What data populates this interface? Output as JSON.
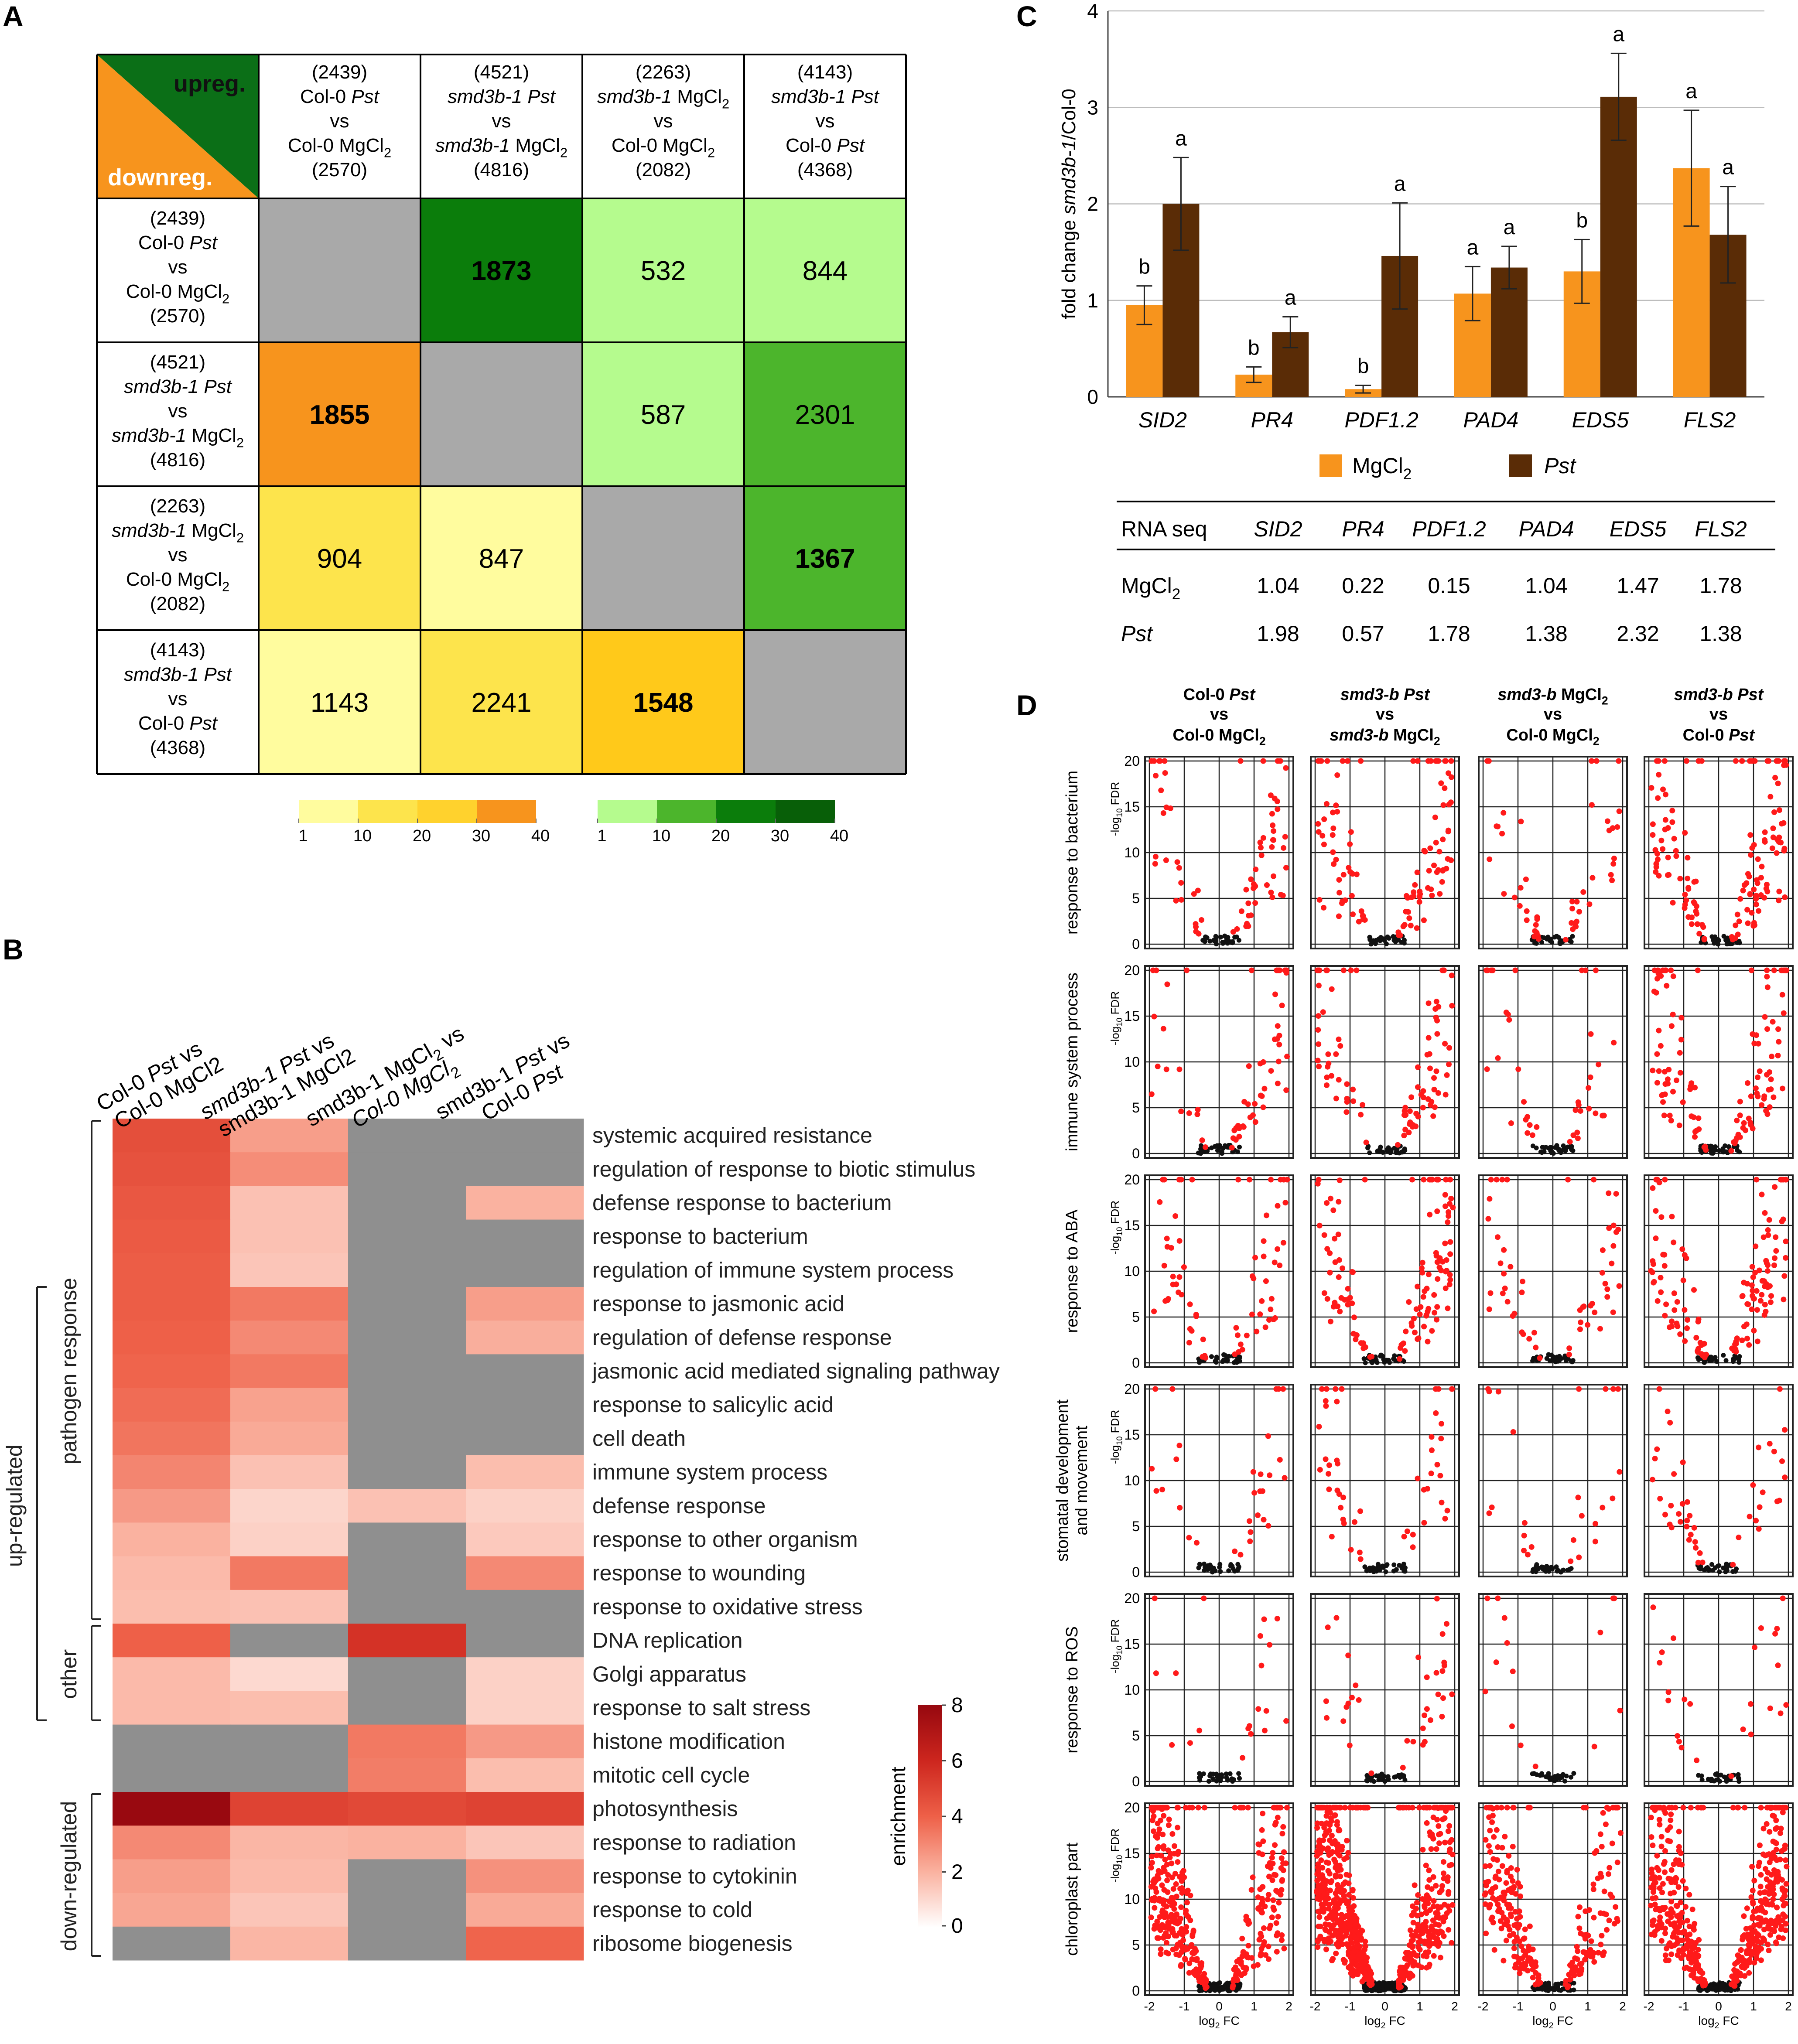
{
  "panels": {
    "a": "A",
    "b": "B",
    "c": "C",
    "d": "D"
  },
  "colors": {
    "grey": "#a9a9a9",
    "orange": "#f7941d",
    "brown": "#5a2c06",
    "red": "#ff1a1a",
    "black": "#111111"
  },
  "chart_data": [
    {
      "type": "table",
      "panel": "A",
      "corner": {
        "up": "upreg.",
        "down": "downreg."
      },
      "comparisons": [
        {
          "n_up": "(2439)",
          "l1": "Col-0 ",
          "l1i": "Pst",
          "vs": "vs",
          "l2": "Col-0 MgCl",
          "l2i": "",
          "sub": "2",
          "n_down": "(2570)"
        },
        {
          "n_up": "(4521)",
          "l1": "",
          "l1i": "smd3b-1 Pst",
          "vs": "vs",
          "l2": "",
          "l2i": "smd3b-1",
          "l2b": " MgCl",
          "sub": "2",
          "n_down": "(4816)"
        },
        {
          "n_up": "(2263)",
          "l1": "",
          "l1i": "smd3b-1",
          "l1b": " MgCl",
          "l1sub": "2",
          "vs": "vs",
          "l2": "Col-0 MgCl",
          "l2i": "",
          "sub": "2",
          "n_down": "(2082)"
        },
        {
          "n_up": "(4143)",
          "l1": "",
          "l1i": "smd3b-1 Pst",
          "vs": "vs",
          "l2": "Col-0 ",
          "l2i": "Pst",
          "sub": "",
          "n_down": "(4368)"
        }
      ],
      "matrix": [
        [
          null,
          "1873",
          "532",
          "844"
        ],
        [
          "1855",
          null,
          "587",
          "2301"
        ],
        [
          "904",
          "847",
          null,
          "1367"
        ],
        [
          "1143",
          "2241",
          "1548",
          null
        ]
      ],
      "bold_cells": [
        [
          0,
          1
        ],
        [
          1,
          0
        ],
        [
          2,
          3
        ],
        [
          3,
          2
        ]
      ],
      "cell_colors": [
        [
          "#a9a9a9",
          "#0b7d0b",
          "#b5fb8e",
          "#b5fb8e"
        ],
        [
          "#f7941d",
          "#a9a9a9",
          "#b5fb8e",
          "#4cb52c"
        ],
        [
          "#fde44c",
          "#fffc9e",
          "#a9a9a9",
          "#4cb52c"
        ],
        [
          "#fffc9e",
          "#fde44c",
          "#ffc91a",
          "#a9a9a9"
        ]
      ],
      "legend_orange": {
        "colors": [
          "#fffc9e",
          "#fde44c",
          "#ffd22d",
          "#f7941d"
        ],
        "ticks": [
          "1",
          "10",
          "20",
          "30",
          "40"
        ]
      },
      "legend_green": {
        "colors": [
          "#b5fb8e",
          "#4cb52c",
          "#0b7d0b",
          "#085f08"
        ],
        "ticks": [
          "1",
          "10",
          "20",
          "30",
          "40"
        ]
      }
    },
    {
      "type": "heatmap",
      "panel": "B",
      "columns": [
        "Col-0 Pst vs Col-0 MgCl2",
        "smd3b-1 Pst vs smd3b-1 MgCl2",
        "smd3b-1 MgCl2 vs Col-0 MgCl2",
        "smd3b-1 Pst vs Col-0 Pst"
      ],
      "rows": [
        "systemic acquired resistance",
        "regulation of response to biotic stimulus",
        "defense response to bacterium",
        "response to bacterium",
        "regulation of immune system process",
        "response to jasmonic acid",
        "regulation of defense response",
        "jasmonic acid mediated signaling pathway",
        "response to salicylic acid",
        "cell death",
        "immune system process",
        "defense response",
        "response to other organism",
        "response to wounding",
        "response to oxidative stress",
        "DNA replication",
        "Golgi apparatus",
        "response to salt stress",
        "histone modification",
        "mitotic cell cycle",
        "photosynthesis",
        "response to radiation",
        "response to cytokinin",
        "response to cold",
        "ribosome biogenesis"
      ],
      "values": [
        [
          4.6,
          2.5,
          null,
          null
        ],
        [
          4.5,
          2.9,
          null,
          null
        ],
        [
          4.3,
          1.6,
          null,
          2.0
        ],
        [
          4.2,
          1.6,
          null,
          null
        ],
        [
          4.1,
          1.5,
          null,
          null
        ],
        [
          4.1,
          3.4,
          null,
          2.5
        ],
        [
          4.0,
          3.0,
          null,
          2.1
        ],
        [
          3.9,
          3.4,
          null,
          null
        ],
        [
          3.7,
          2.4,
          null,
          null
        ],
        [
          3.5,
          2.2,
          null,
          null
        ],
        [
          3.1,
          1.6,
          null,
          1.7
        ],
        [
          2.6,
          1.1,
          1.6,
          1.2
        ],
        [
          2.0,
          1.2,
          null,
          1.4
        ],
        [
          1.8,
          3.4,
          null,
          3.0
        ],
        [
          1.7,
          1.6,
          null,
          null
        ],
        [
          4.0,
          null,
          5.6,
          null
        ],
        [
          1.8,
          1.0,
          null,
          1.2
        ],
        [
          1.8,
          1.7,
          null,
          1.2
        ],
        [
          null,
          null,
          3.4,
          2.6
        ],
        [
          null,
          null,
          3.3,
          1.7
        ],
        [
          7.9,
          5.0,
          4.8,
          5.0
        ],
        [
          3.0,
          1.9,
          2.0,
          1.5
        ],
        [
          2.5,
          1.8,
          null,
          2.8
        ],
        [
          2.3,
          1.5,
          null,
          2.2
        ],
        [
          null,
          1.9,
          null,
          3.9
        ]
      ],
      "groups": {
        "up": "up-regulated",
        "pathogen": "pathogen response",
        "other": "other",
        "down": "down-regulated"
      },
      "legend": {
        "title": "enrichment",
        "ticks": [
          "0",
          "2",
          "4",
          "6",
          "8"
        ],
        "min": 0,
        "max": 8
      }
    },
    {
      "type": "bar",
      "panel": "C",
      "categories": [
        "SID2",
        "PR4",
        "PDF1.2",
        "PAD4",
        "EDS5",
        "FLS2"
      ],
      "series": [
        {
          "name": "MgCl2",
          "values": [
            0.95,
            0.23,
            0.08,
            1.07,
            1.3,
            2.37
          ],
          "err": [
            0.2,
            0.08,
            0.04,
            0.28,
            0.33,
            0.6
          ],
          "letters": [
            "b",
            "b",
            "b",
            "a",
            "b",
            "a"
          ]
        },
        {
          "name": "Pst",
          "values": [
            2.0,
            0.67,
            1.46,
            1.34,
            3.11,
            1.68
          ],
          "err": [
            0.48,
            0.16,
            0.55,
            0.22,
            0.45,
            0.5
          ],
          "letters": [
            "a",
            "a",
            "a",
            "a",
            "a",
            "a"
          ]
        }
      ],
      "ylim": [
        0,
        4
      ],
      "yticks": [
        "0",
        "1",
        "2",
        "3",
        "4"
      ],
      "ylabel": {
        "pre": "fold change ",
        "ital": "smd3b-1",
        "post": "/Col-0"
      },
      "legend": {
        "mg": "MgCl",
        "mg_sub": "2",
        "pst": "Pst"
      },
      "rnaseq": {
        "header": "RNA seq",
        "genes": [
          "SID2",
          "PR4",
          "PDF1.2",
          "PAD4",
          "EDS5",
          "FLS2"
        ],
        "rows": [
          {
            "label": "MgCl",
            "sub": "2",
            "values": [
              "1.04",
              "0.22",
              "0.15",
              "1.04",
              "1.47",
              "1.78"
            ]
          },
          {
            "label": "Pst",
            "sub": "",
            "values": [
              "1.98",
              "0.57",
              "1.78",
              "1.38",
              "2.32",
              "1.38"
            ]
          }
        ]
      }
    },
    {
      "type": "scatter",
      "panel": "D",
      "columns": [
        {
          "l1": "Col-0 ",
          "l1i": "Pst",
          "vs": "vs",
          "l2": "Col-0 MgCl",
          "sub": "2"
        },
        {
          "l1": "",
          "l1i": "smd3-b Pst",
          "vs": "vs",
          "l2": "",
          "l2i": "smd3-b",
          "l2b": " MgCl",
          "sub": "2"
        },
        {
          "l1": "",
          "l1i": "smd3-b",
          "l1b": " MgCl",
          "l1sub": "2",
          "vs": "vs",
          "l2": "Col-0 MgCl",
          "sub": "2"
        },
        {
          "l1": "",
          "l1i": "smd3-b Pst",
          "vs": "vs",
          "l2": "Col-0  ",
          "l2i": "Pst",
          "sub": ""
        }
      ],
      "rows": [
        "response to bacterium",
        "immune system process",
        "response to ABA",
        "stomatal development|and movement",
        "response to ROS",
        "chloroplast part"
      ],
      "density": [
        [
          70,
          110,
          50,
          140
        ],
        [
          60,
          90,
          40,
          120
        ],
        [
          70,
          120,
          55,
          130
        ],
        [
          30,
          50,
          25,
          45
        ],
        [
          20,
          35,
          15,
          25
        ],
        [
          400,
          700,
          250,
          500
        ]
      ],
      "xlim": [
        -2,
        2
      ],
      "ylim": [
        0,
        20
      ],
      "xticks": [
        "-2",
        "-1",
        "0",
        "1",
        "2"
      ],
      "yticks": [
        "0",
        "5",
        "10",
        "15",
        "20"
      ],
      "ylabel": {
        "pre": "-log",
        "sub": "10",
        "post": " FDR"
      },
      "xlabel": {
        "pre": "log",
        "sub": "2",
        "post": " FC"
      }
    }
  ]
}
